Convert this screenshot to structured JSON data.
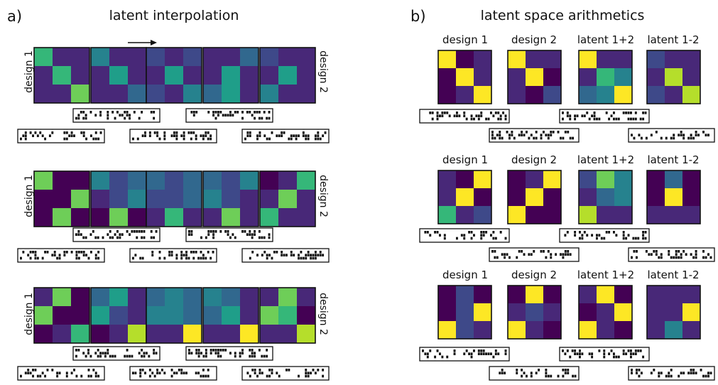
{
  "panel_a": {
    "letter": "a)",
    "title": "latent interpolation",
    "left_label": "design 1",
    "right_label": "design 2",
    "rows": [
      {
        "grids": [
          [
            [
              0.65,
              0.1,
              0.1
            ],
            [
              0.1,
              0.65,
              0.1
            ],
            [
              0.1,
              0.1,
              0.8
            ]
          ],
          [
            [
              0.45,
              0.1,
              0.15
            ],
            [
              0.1,
              0.55,
              0.1
            ],
            [
              0.15,
              0.12,
              0.28
            ]
          ],
          [
            [
              0.25,
              0.15,
              0.25
            ],
            [
              0.15,
              0.55,
              0.15
            ],
            [
              0.25,
              0.15,
              0.45
            ]
          ],
          [
            [
              0.12,
              0.1,
              0.38
            ],
            [
              0.1,
              0.6,
              0.1
            ],
            [
              0.35,
              0.6,
              0.12
            ]
          ],
          [
            [
              0.2,
              0.1,
              0.1
            ],
            [
              0.1,
              0.6,
              0.1
            ],
            [
              0.45,
              0.1,
              0.1
            ]
          ]
        ]
      },
      {
        "grids": [
          [
            [
              0.82,
              0.05,
              0.05
            ],
            [
              0.05,
              0.05,
              0.8
            ],
            [
              0.05,
              0.82,
              0.05
            ]
          ],
          [
            [
              0.4,
              0.2,
              0.3
            ],
            [
              0.15,
              0.2,
              0.45
            ],
            [
              0.05,
              0.75,
              0.05
            ]
          ],
          [
            [
              0.3,
              0.2,
              0.3
            ],
            [
              0.2,
              0.25,
              0.3
            ],
            [
              0.1,
              0.68,
              0.1
            ]
          ],
          [
            [
              0.3,
              0.2,
              0.4
            ],
            [
              0.45,
              0.2,
              0.15
            ],
            [
              0.1,
              0.75,
              0.1
            ]
          ],
          [
            [
              0.05,
              0.1,
              0.65
            ],
            [
              0.1,
              0.8,
              0.1
            ],
            [
              0.65,
              0.1,
              0.1
            ]
          ]
        ]
      },
      {
        "grids": [
          [
            [
              0.1,
              0.8,
              0.05
            ],
            [
              0.8,
              0.05,
              0.05
            ],
            [
              0.05,
              0.1,
              0.7
            ]
          ],
          [
            [
              0.35,
              0.5,
              0.1
            ],
            [
              0.5,
              0.25,
              0.1
            ],
            [
              0.05,
              0.1,
              0.85
            ]
          ],
          [
            [
              0.35,
              0.45,
              0.3
            ],
            [
              0.4,
              0.4,
              0.3
            ],
            [
              0.1,
              0.1,
              0.95
            ]
          ],
          [
            [
              0.45,
              0.3,
              0.1
            ],
            [
              0.3,
              0.5,
              0.1
            ],
            [
              0.1,
              0.1,
              0.95
            ]
          ],
          [
            [
              0.1,
              0.75,
              0.1
            ],
            [
              0.75,
              0.65,
              0.05
            ],
            [
              0.1,
              0.1,
              0.85
            ]
          ]
        ]
      }
    ]
  },
  "panel_b": {
    "letter": "b)",
    "title": "latent space arithmetics",
    "column_labels": [
      "design 1",
      "design 2",
      "latent 1+2",
      "latent 1-2"
    ],
    "groups": [
      {
        "grids": [
          [
            [
              0.95,
              0.05,
              0.1
            ],
            [
              0.05,
              0.95,
              0.15
            ],
            [
              0.05,
              0.1,
              0.95
            ]
          ],
          [
            [
              0.95,
              0.1,
              0.1
            ],
            [
              0.1,
              0.95,
              0.05
            ],
            [
              0.1,
              0.05,
              0.25
            ]
          ],
          [
            [
              0.95,
              0.1,
              0.15
            ],
            [
              0.1,
              0.7,
              0.4
            ],
            [
              0.3,
              0.45,
              0.95
            ]
          ],
          [
            [
              0.25,
              0.1,
              0.1
            ],
            [
              0.15,
              0.9,
              0.1
            ],
            [
              0.2,
              0.1,
              0.9
            ]
          ]
        ]
      },
      {
        "grids": [
          [
            [
              0.1,
              0.05,
              0.95
            ],
            [
              0.1,
              0.95,
              0.05
            ],
            [
              0.7,
              0.1,
              0.2
            ]
          ],
          [
            [
              0.05,
              0.1,
              0.95
            ],
            [
              0.05,
              0.95,
              0.05
            ],
            [
              0.95,
              0.05,
              0.05
            ]
          ],
          [
            [
              0.2,
              0.75,
              0.4
            ],
            [
              0.15,
              0.3,
              0.4
            ],
            [
              0.85,
              0.1,
              0.15
            ]
          ],
          [
            [
              0.05,
              0.3,
              0.05
            ],
            [
              0.05,
              0.95,
              0.05
            ],
            [
              0.1,
              0.1,
              0.1
            ]
          ]
        ]
      },
      {
        "grids": [
          [
            [
              0.05,
              0.25,
              0.05
            ],
            [
              0.05,
              0.25,
              0.95
            ],
            [
              0.95,
              0.25,
              0.15
            ]
          ],
          [
            [
              0.05,
              0.95,
              0.05
            ],
            [
              0.15,
              0.2,
              0.15
            ],
            [
              0.95,
              0.1,
              0.05
            ]
          ],
          [
            [
              0.1,
              0.95,
              0.05
            ],
            [
              0.05,
              0.15,
              0.95
            ],
            [
              0.95,
              0.15,
              0.05
            ]
          ],
          [
            [
              0.15,
              0.1,
              0.1
            ],
            [
              0.1,
              0.1,
              0.95
            ],
            [
              0.15,
              0.45,
              0.1
            ]
          ]
        ]
      }
    ]
  },
  "colormap": [
    "#440154",
    "#482878",
    "#3e4989",
    "#31688e",
    "#26828e",
    "#1f9e89",
    "#35b779",
    "#6ece58",
    "#b5de2b",
    "#fde725"
  ],
  "colors": {
    "border": "#111111",
    "cell_black": "#111111",
    "background": "#ffffff"
  }
}
